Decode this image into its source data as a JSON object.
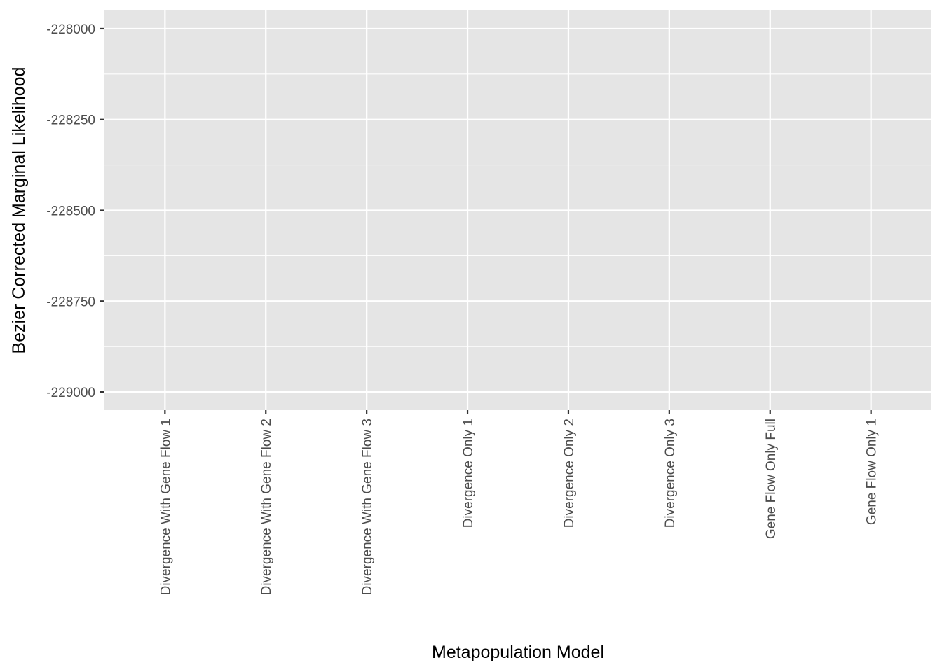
{
  "chart_data": {
    "type": "scatter",
    "title": "",
    "xlabel": "Metapopulation Model",
    "ylabel": "Bezier Corrected Marginal Likelihood",
    "categories": [
      "Divergence With Gene Flow 1",
      "Divergence With Gene Flow 2",
      "Divergence With Gene Flow 3",
      "Divergence Only 1",
      "Divergence Only 2",
      "Divergence Only 3",
      "Gene Flow Only Full",
      "Gene Flow Only 1"
    ],
    "series": [],
    "ylim": [
      -229050,
      -227950
    ],
    "yticks": [
      -228000,
      -228250,
      -228500,
      -228750,
      -229000
    ],
    "ytick_labels": [
      "-228000",
      "-228250",
      "-228500",
      "-228750",
      "-229000"
    ],
    "grid": true,
    "panel_background": "#e5e5e5",
    "grid_color": "#ffffff"
  }
}
